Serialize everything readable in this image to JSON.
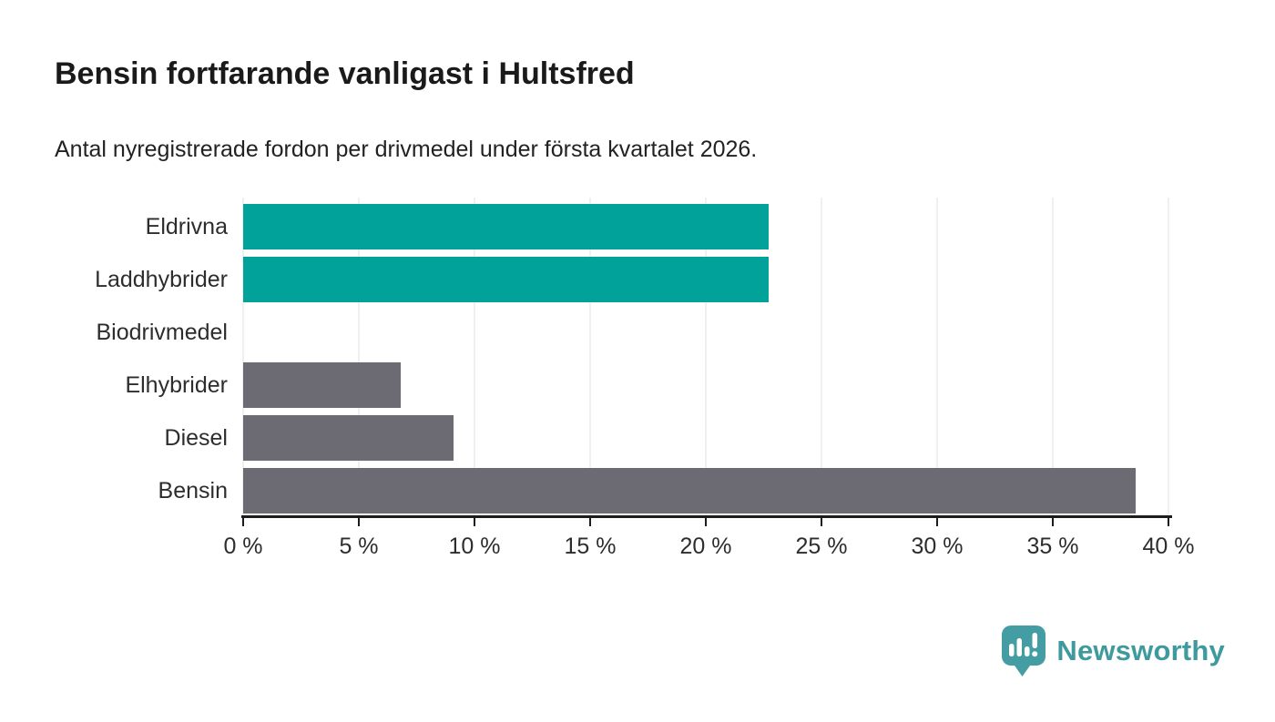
{
  "header": {
    "title": "Bensin fortfarande vanligast i Hultsfred",
    "subtitle": "Antal nyregistrerade fordon per drivmedel under första kvartalet 2026."
  },
  "chart_data": {
    "type": "bar",
    "orientation": "horizontal",
    "title": "Bensin fortfarande vanligast i Hultsfred",
    "subtitle": "Antal nyregistrerade fordon per drivmedel under första kvartalet 2026.",
    "categories": [
      "Eldrivna",
      "Laddhybrider",
      "Biodrivmedel",
      "Elhybrider",
      "Diesel",
      "Bensin"
    ],
    "values": [
      22.7,
      22.7,
      0,
      6.8,
      9.1,
      38.6
    ],
    "unit": "%",
    "bar_colors": [
      "#00A29A",
      "#00A29A",
      "#00A29A",
      "#6C6B73",
      "#6C6B73",
      "#6C6B73"
    ],
    "xlim": [
      0,
      40
    ],
    "x_ticks": [
      0,
      5,
      10,
      15,
      20,
      25,
      30,
      35,
      40
    ],
    "x_tick_labels": [
      "0 %",
      "5 %",
      "10 %",
      "15 %",
      "20 %",
      "25 %",
      "30 %",
      "35 %",
      "40 %"
    ],
    "grid": "vertical-on",
    "legend": "none"
  },
  "branding": {
    "name": "Newsworthy",
    "icon": "newsworthy-pin-chart-icon",
    "icon_color": "#449DA2",
    "text_color": "#3F9A9E"
  },
  "colors": {
    "accent_teal": "#00A29A",
    "neutral_gray": "#6C6B73",
    "axis": "#1c1c1c",
    "gridline": "#e2e2e2",
    "background": "#ffffff"
  }
}
